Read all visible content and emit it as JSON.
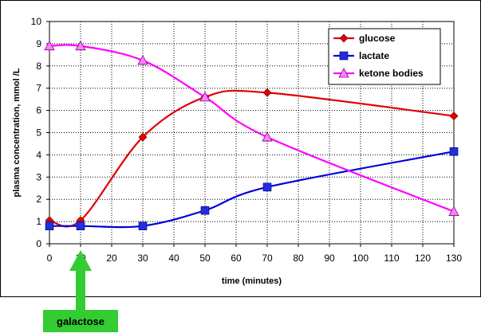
{
  "chart_data": {
    "type": "line",
    "xlabel": "time (minutes)",
    "ylabel": "plasma concentration, mmol /L",
    "xlim": [
      0,
      130
    ],
    "ylim": [
      0,
      10
    ],
    "x_ticks": [
      0,
      10,
      20,
      30,
      40,
      50,
      60,
      70,
      80,
      90,
      100,
      110,
      120,
      130
    ],
    "y_ticks": [
      0,
      1,
      2,
      3,
      4,
      5,
      6,
      7,
      8,
      9,
      10
    ],
    "grid": "dotted",
    "legend_position": "top-right",
    "series": [
      {
        "name": "glucose",
        "color": "#e00000",
        "marker": "diamond",
        "marker_color": "#e00000",
        "x": [
          0,
          10,
          30,
          50,
          70,
          130
        ],
        "y": [
          1.05,
          1.05,
          4.8,
          6.6,
          6.8,
          5.75
        ]
      },
      {
        "name": "lactate",
        "color": "#0000dd",
        "marker": "square",
        "marker_color": "#1f2fe0",
        "x": [
          0,
          10,
          30,
          50,
          70,
          130
        ],
        "y": [
          0.8,
          0.8,
          0.8,
          1.5,
          2.55,
          4.15
        ]
      },
      {
        "name": "ketone bodies",
        "color": "#ff00ff",
        "marker": "triangle",
        "marker_color": "#ff80ff",
        "x": [
          0,
          10,
          30,
          50,
          70,
          130
        ],
        "y": [
          8.9,
          8.9,
          8.25,
          6.6,
          4.8,
          1.45
        ]
      }
    ],
    "annotation": {
      "label": "galactose",
      "x": 10,
      "arrow_color": "#33cc33",
      "box_color": "#33cc33"
    }
  }
}
